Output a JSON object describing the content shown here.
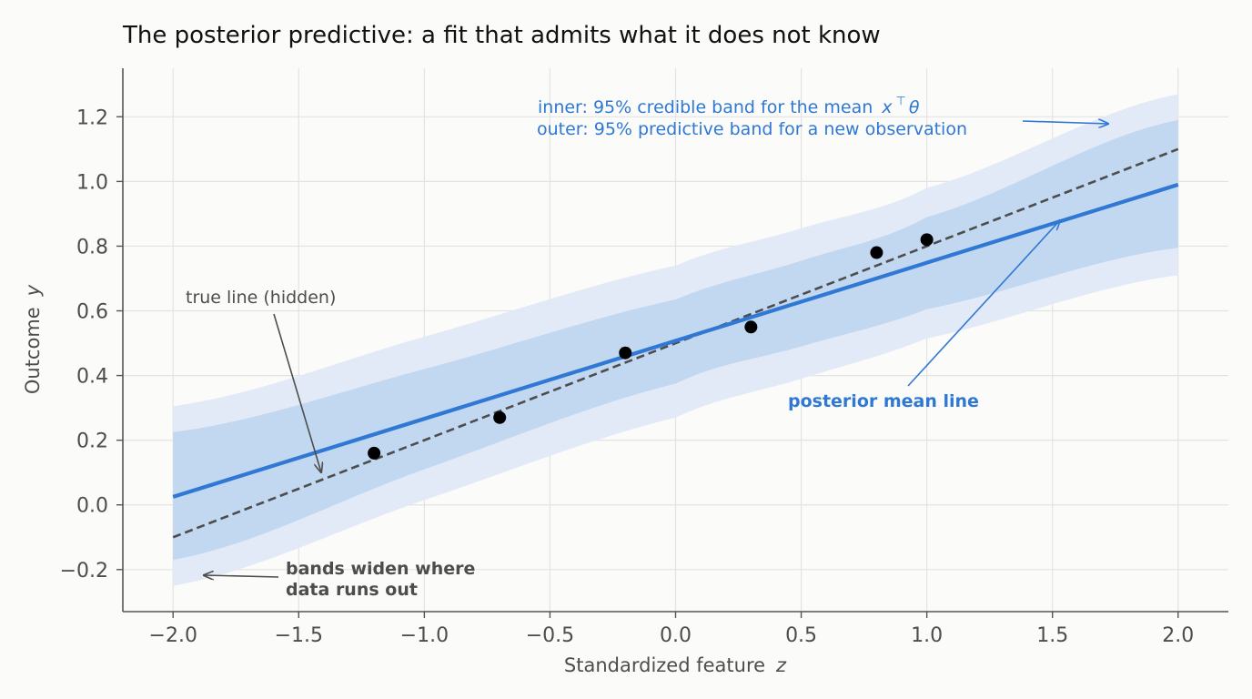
{
  "chart_data": {
    "type": "line",
    "title": "The posterior predictive: a fit that admits what it does not know",
    "xlabel": "Standardized feature",
    "xlabel_var": "z",
    "ylabel": "Outcome",
    "ylabel_var": "y",
    "xlim": [
      -2.2,
      2.2
    ],
    "ylim": [
      -0.33,
      1.35
    ],
    "x_ticks": [
      -2.0,
      -1.5,
      -1.0,
      -0.5,
      0.0,
      0.5,
      1.0,
      1.5,
      2.0
    ],
    "x_tick_labels": [
      "−2.0",
      "−1.5",
      "−1.0",
      "−0.5",
      "0.0",
      "0.5",
      "1.0",
      "1.5",
      "2.0"
    ],
    "y_ticks": [
      -0.2,
      0.0,
      0.2,
      0.4,
      0.6,
      0.8,
      1.0,
      1.2
    ],
    "y_tick_labels": [
      "−0.2",
      "0.0",
      "0.2",
      "0.4",
      "0.6",
      "0.8",
      "1.0",
      "1.2"
    ],
    "grid": true,
    "band_x_range": [
      -2.0,
      2.0
    ],
    "series": [
      {
        "kind": "band",
        "style": "outer",
        "x": [
          -2.0,
          -1.0,
          0.0,
          0.5,
          1.0,
          2.0
        ],
        "lower": [
          -0.25,
          0.015,
          0.27,
          0.39,
          0.515,
          0.71
        ],
        "upper": [
          0.305,
          0.52,
          0.74,
          0.855,
          0.98,
          1.27
        ]
      },
      {
        "kind": "band",
        "style": "inner",
        "x": [
          -2.0,
          -1.0,
          0.0,
          0.5,
          1.0,
          2.0
        ],
        "lower": [
          -0.17,
          0.11,
          0.375,
          0.49,
          0.605,
          0.795
        ],
        "upper": [
          0.225,
          0.42,
          0.635,
          0.755,
          0.89,
          1.19
        ]
      },
      {
        "kind": "line",
        "style": "true",
        "x": [
          -2.0,
          2.0
        ],
        "y": [
          -0.1,
          1.1
        ]
      },
      {
        "kind": "line",
        "style": "mean",
        "x": [
          -2.0,
          2.0
        ],
        "y": [
          0.025,
          0.99
        ]
      },
      {
        "kind": "scatter",
        "style": "data",
        "x": [
          -1.2,
          -0.7,
          -0.2,
          0.3,
          0.8,
          1.0
        ],
        "y": [
          0.16,
          0.27,
          0.47,
          0.55,
          0.78,
          0.82
        ]
      }
    ],
    "annotations": {
      "band_inner_text": "inner: 95% credible band for the mean",
      "band_inner_math": "x",
      "band_inner_sup": "⊤",
      "band_inner_theta": "θ",
      "band_outer_text": "outer: 95% predictive band for a new observation",
      "true_line_text": "true line (hidden)",
      "mean_line_text": "posterior mean line",
      "widen_line1": "bands widen where",
      "widen_line2": "data runs out"
    },
    "colors": {
      "accent": "#2f78d4",
      "inner_band": "#bcd3ef",
      "outer_band": "#e1e9f7",
      "true_line": "#4d4d4d",
      "points": "#000000",
      "grid": "#e3e3e3",
      "axis": "#555555",
      "text": "#4d4d4d"
    }
  }
}
